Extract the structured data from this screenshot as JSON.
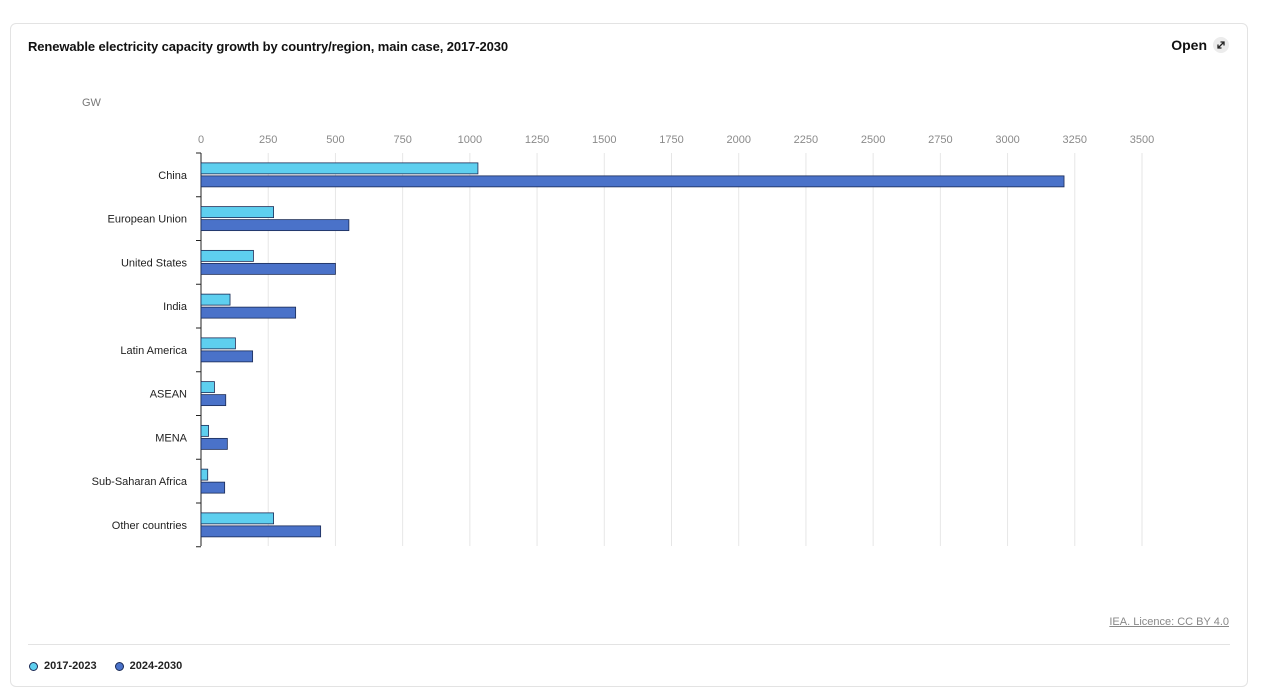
{
  "open_label": "Open",
  "licence_text": "IEA. Licence: CC BY 4.0",
  "icons": {
    "open": "expand-arrow-icon"
  },
  "colors": {
    "series_2017_2023": "#5ecfef",
    "series_2024_2030": "#4a72c9",
    "bar_stroke": "#1a2a55"
  },
  "chart_data": {
    "type": "bar",
    "orientation": "horizontal",
    "title": "Renewable electricity capacity growth by country/region, main case, 2017-2030",
    "unit": "GW",
    "categories": [
      "China",
      "European Union",
      "United States",
      "India",
      "Latin America",
      "ASEAN",
      "MENA",
      "Sub-Saharan Africa",
      "Other countries"
    ],
    "series": [
      {
        "name": "2017-2023",
        "values": [
          1030,
          270,
          195,
          108,
          128,
          50,
          28,
          25,
          270
        ]
      },
      {
        "name": "2024-2030",
        "values": [
          3210,
          550,
          500,
          352,
          192,
          92,
          98,
          88,
          445
        ]
      }
    ],
    "x_ticks": [
      0,
      250,
      500,
      750,
      1000,
      1250,
      1500,
      1750,
      2000,
      2250,
      2500,
      2750,
      3000,
      3250,
      3500
    ],
    "xlim": [
      0,
      3500
    ],
    "grid": true,
    "legend_position": "bottom-left"
  }
}
